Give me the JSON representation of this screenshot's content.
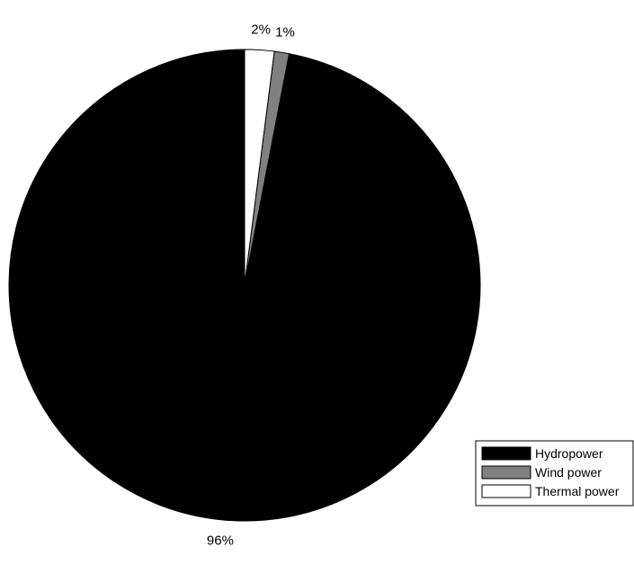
{
  "chart_data": {
    "type": "pie",
    "title": "",
    "start_angle_deg": 90,
    "direction": "clockwise",
    "slices": [
      {
        "label": "Thermal power",
        "value": 2,
        "display": "2%",
        "color": "#ffffff"
      },
      {
        "label": "Wind power",
        "value": 1,
        "display": "1%",
        "color": "#808080"
      },
      {
        "label": "Hydropower",
        "value": 96,
        "display": "96%",
        "color": "#000000"
      }
    ],
    "legend": {
      "position": "bottom-right",
      "entries": [
        {
          "label": "Hydropower",
          "color": "#000000"
        },
        {
          "label": "Wind power",
          "color": "#808080"
        },
        {
          "label": "Thermal power",
          "color": "#ffffff"
        }
      ]
    }
  }
}
